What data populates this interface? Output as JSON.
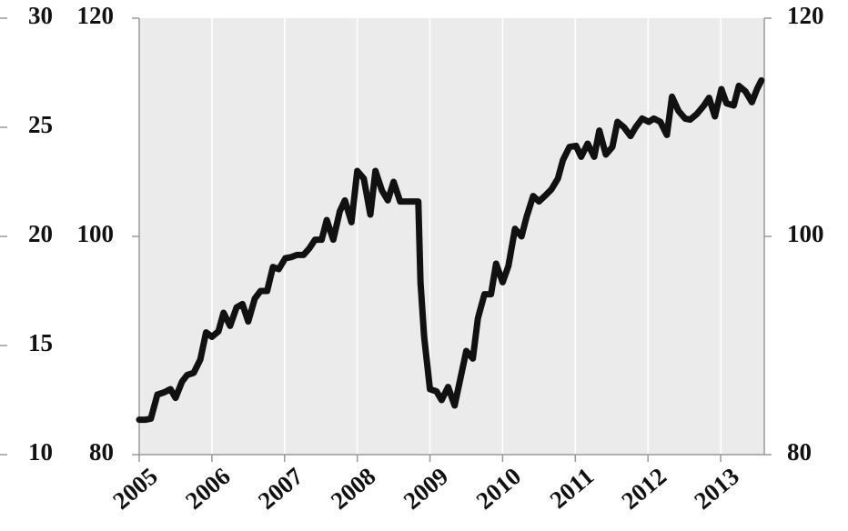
{
  "chart_data": {
    "type": "line",
    "x": [
      2005.0,
      2005.09,
      2005.16,
      2005.25,
      2005.34,
      2005.43,
      2005.5,
      2005.59,
      2005.66,
      2005.75,
      2005.84,
      2005.92,
      2006.0,
      2006.09,
      2006.16,
      2006.25,
      2006.34,
      2006.42,
      2006.5,
      2006.59,
      2006.67,
      2006.76,
      2006.84,
      2006.92,
      2007.01,
      2007.09,
      2007.17,
      2007.26,
      2007.34,
      2007.42,
      2007.51,
      2007.58,
      2007.67,
      2007.76,
      2007.83,
      2007.92,
      2008.0,
      2008.09,
      2008.18,
      2008.25,
      2008.34,
      2008.42,
      2008.5,
      2008.59,
      2008.67,
      2008.75,
      2008.84,
      2008.87,
      2008.92,
      2009.0,
      2009.09,
      2009.16,
      2009.25,
      2009.34,
      2009.41,
      2009.5,
      2009.59,
      2009.66,
      2009.75,
      2009.84,
      2009.91,
      2010.0,
      2010.08,
      2010.17,
      2010.26,
      2010.33,
      2010.42,
      2010.5,
      2010.58,
      2010.67,
      2010.76,
      2010.83,
      2010.92,
      2011.01,
      2011.08,
      2011.17,
      2011.26,
      2011.33,
      2011.42,
      2011.51,
      2011.58,
      2011.67,
      2011.76,
      2011.83,
      2011.92,
      2012.01,
      2012.08,
      2012.17,
      2012.26,
      2012.33,
      2012.42,
      2012.51,
      2012.58,
      2012.67,
      2012.77,
      2012.84,
      2012.92,
      2013.01,
      2013.08,
      2013.18,
      2013.25,
      2013.34,
      2013.43,
      2013.5,
      2013.56
    ],
    "series": [
      {
        "color": "#111111",
        "axis": "y",
        "values": [
          83.2,
          83.2,
          83.3,
          85.5,
          85.7,
          86.0,
          85.2,
          86.7,
          87.3,
          87.5,
          88.7,
          91.2,
          90.8,
          91.3,
          93.0,
          91.8,
          93.5,
          93.8,
          92.2,
          94.3,
          95.0,
          95.0,
          97.2,
          97.0,
          98.0,
          98.1,
          98.3,
          98.3,
          98.9,
          99.7,
          99.7,
          101.5,
          99.7,
          102.3,
          103.3,
          101.3,
          106.0,
          105.3,
          102.0,
          106.0,
          104.2,
          103.3,
          105.0,
          103.2,
          103.2,
          103.2,
          103.2,
          95.8,
          90.8,
          86.0,
          85.8,
          85.0,
          86.2,
          84.5,
          86.7,
          89.5,
          88.8,
          92.5,
          94.7,
          94.7,
          97.5,
          95.8,
          97.3,
          100.7,
          100.0,
          101.8,
          103.7,
          103.2,
          103.7,
          104.3,
          105.3,
          107.0,
          108.2,
          108.3,
          107.3,
          108.5,
          107.3,
          109.7,
          107.5,
          108.2,
          110.5,
          110.0,
          109.2,
          110.0,
          110.8,
          110.5,
          110.8,
          110.5,
          109.3,
          112.8,
          111.5,
          110.8,
          110.7,
          111.2,
          112.0,
          112.7,
          111.0,
          113.5,
          112.2,
          112.0,
          113.8,
          113.3,
          112.3,
          113.5,
          114.3
        ]
      }
    ],
    "xlim": [
      2005,
      2013.6
    ],
    "xticks": [
      2005,
      2006,
      2007,
      2008,
      2009,
      2010,
      2011,
      2012,
      2013
    ],
    "ylim": [
      80,
      120
    ],
    "yticks": [
      80,
      100,
      120
    ],
    "y2lim": [
      80,
      120
    ],
    "y2ticks": [
      80,
      100,
      120
    ],
    "y3lim": [
      10,
      30
    ],
    "y3ticks": [
      10,
      15,
      20,
      25,
      30
    ],
    "grid": true
  }
}
